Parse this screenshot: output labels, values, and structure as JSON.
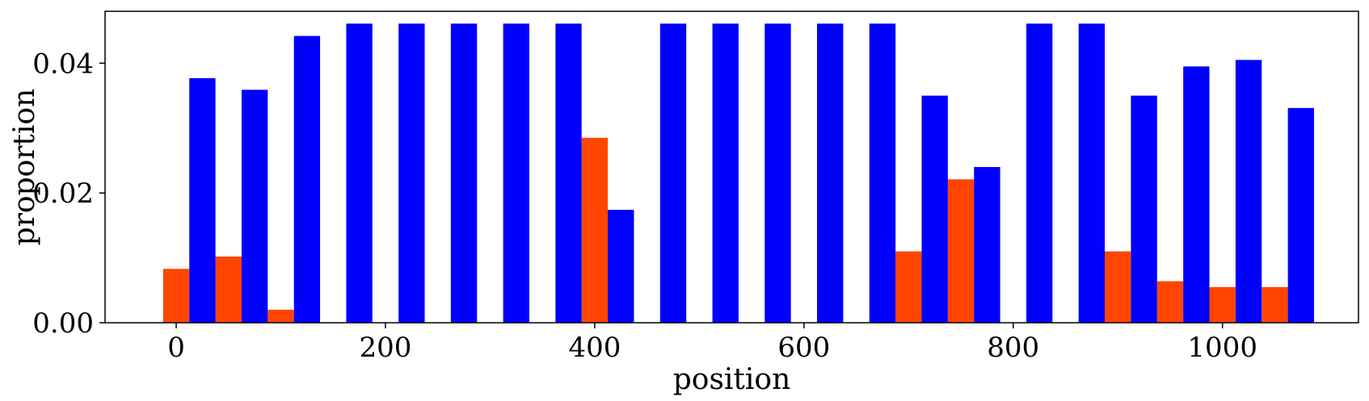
{
  "chart_data": {
    "type": "bar",
    "xlabel": "position",
    "ylabel": "proportion",
    "xlim": [
      -68,
      1130
    ],
    "ylim": [
      0,
      0.048
    ],
    "x_ticks": [
      0,
      200,
      400,
      600,
      800,
      1000
    ],
    "x_tick_labels": [
      "0",
      "200",
      "400",
      "600",
      "800",
      "1000"
    ],
    "y_ticks": [
      0.0,
      0.02,
      0.04
    ],
    "y_tick_labels": [
      "0.00",
      "0.02",
      "0.04"
    ],
    "grid": false,
    "legend": "none",
    "bar_width": 25,
    "series": [
      {
        "color": "#ff4500",
        "x": [
          0,
          50,
          100,
          400,
          700,
          750,
          900,
          950,
          1000,
          1050
        ],
        "values": [
          0.0083,
          0.0102,
          0.002,
          0.0285,
          0.011,
          0.0221,
          0.011,
          0.0064,
          0.0055,
          0.0055
        ]
      },
      {
        "color": "#0000ff",
        "x": [
          25,
          75,
          125,
          175,
          225,
          275,
          325,
          375,
          425,
          475,
          525,
          575,
          625,
          675,
          725,
          775,
          825,
          875,
          925,
          975,
          1025,
          1075
        ],
        "values": [
          0.0377,
          0.0359,
          0.0442,
          0.0461,
          0.0461,
          0.0461,
          0.0461,
          0.0461,
          0.0174,
          0.0461,
          0.0461,
          0.0461,
          0.0461,
          0.0461,
          0.035,
          0.024,
          0.0461,
          0.0461,
          0.035,
          0.0395,
          0.0405,
          0.0331
        ]
      }
    ]
  }
}
